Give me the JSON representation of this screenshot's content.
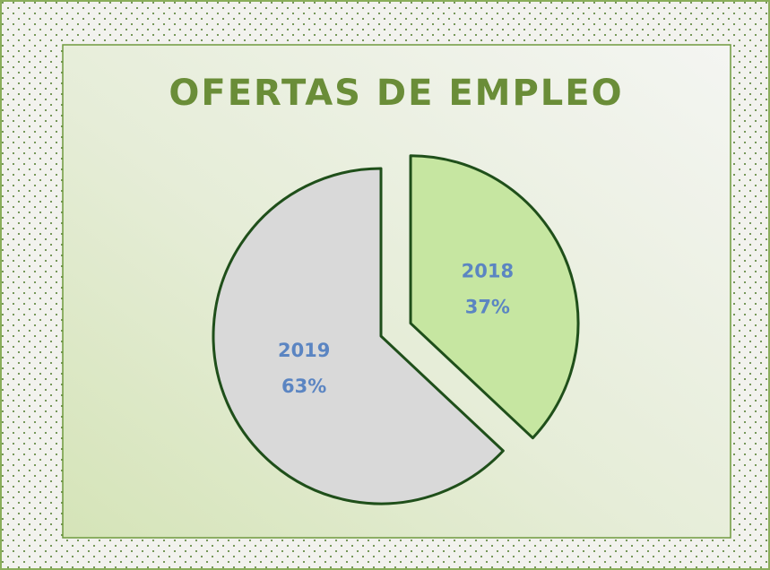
{
  "chart_data": {
    "type": "pie",
    "title": "OFERTAS DE EMPLEO",
    "categories": [
      "2018",
      "2019"
    ],
    "values": [
      37,
      63
    ],
    "value_labels": [
      "37%",
      "63%"
    ],
    "colors": [
      "#c6e6a1",
      "#d9d9d9"
    ]
  }
}
